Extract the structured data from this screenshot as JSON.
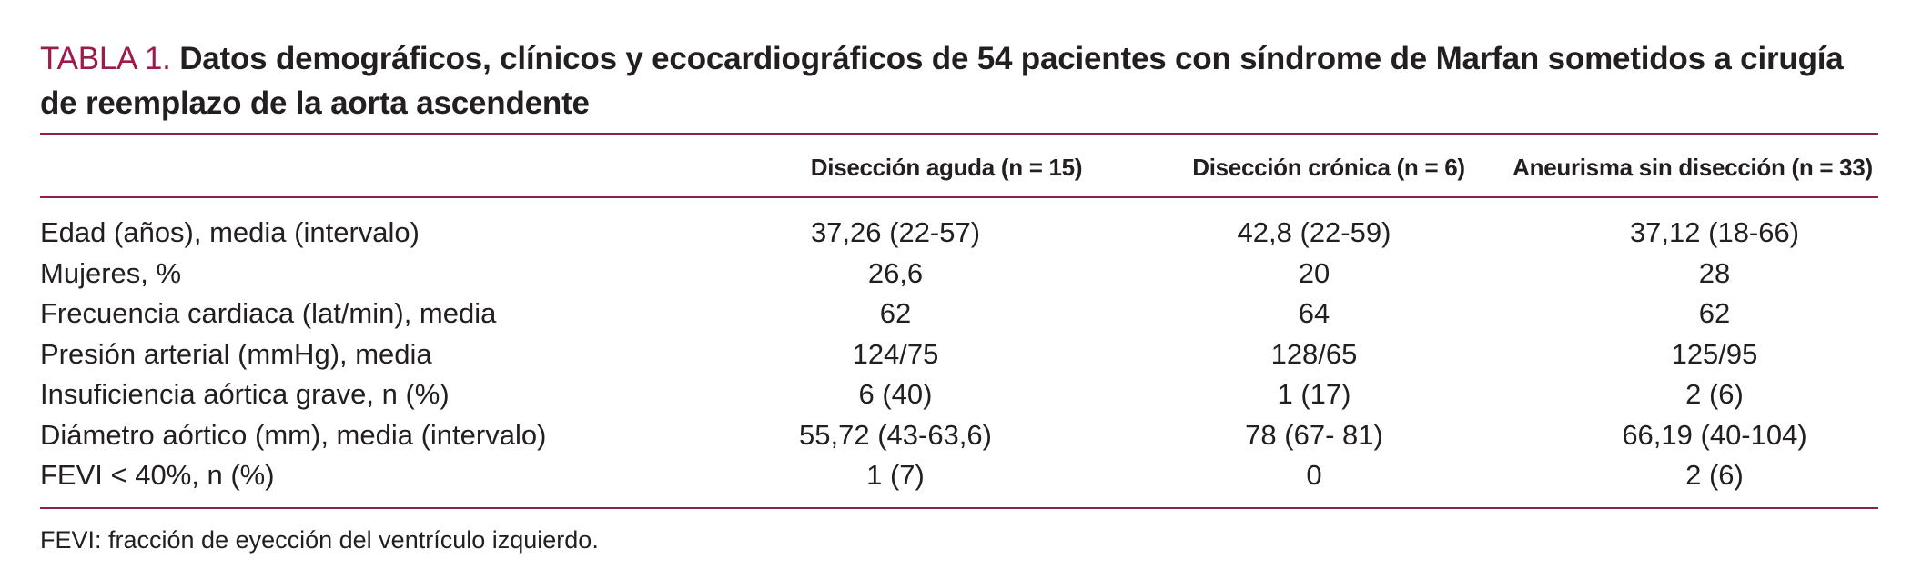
{
  "title": {
    "label": "TABLA 1.",
    "text": "Datos demográficos, clínicos y ecocardiográficos de 54 pacientes con síndrome de Marfan sometidos a cirugía de reemplazo de la aorta ascendente"
  },
  "columns": [
    "Disección aguda (n = 15)",
    "Disección crónica (n = 6)",
    "Aneurisma sin disección (n = 33)"
  ],
  "rows": [
    {
      "label": "Edad (años), media (intervalo)",
      "values": [
        "37,26 (22-57)",
        "42,8 (22-59)",
        "37,12 (18-66)"
      ]
    },
    {
      "label": "Mujeres, %",
      "values": [
        "26,6",
        "20",
        "28"
      ]
    },
    {
      "label": "Frecuencia cardiaca (lat/min), media",
      "values": [
        "62",
        "64",
        "62"
      ]
    },
    {
      "label": "Presión arterial (mmHg), media",
      "values": [
        "124/75",
        "128/65",
        "125/95"
      ]
    },
    {
      "label": "Insuficiencia aórtica grave, n (%)",
      "values": [
        "6 (40)",
        "1 (17)",
        "2 (6)"
      ]
    },
    {
      "label": "Diámetro aórtico (mm), media (intervalo)",
      "values": [
        "55,72 (43-63,6)",
        "78 (67- 81)",
        "66,19 (40-104)"
      ]
    },
    {
      "label": "FEVI < 40%, n (%)",
      "values": [
        "1 (7)",
        "0",
        "2 (6)"
      ]
    }
  ],
  "footnote": "FEVI: fracción de eyección del ventrículo izquierdo.",
  "colors": {
    "accent": "#9b1b4d",
    "rule": "#8e1f4f",
    "text": "#231f20"
  }
}
